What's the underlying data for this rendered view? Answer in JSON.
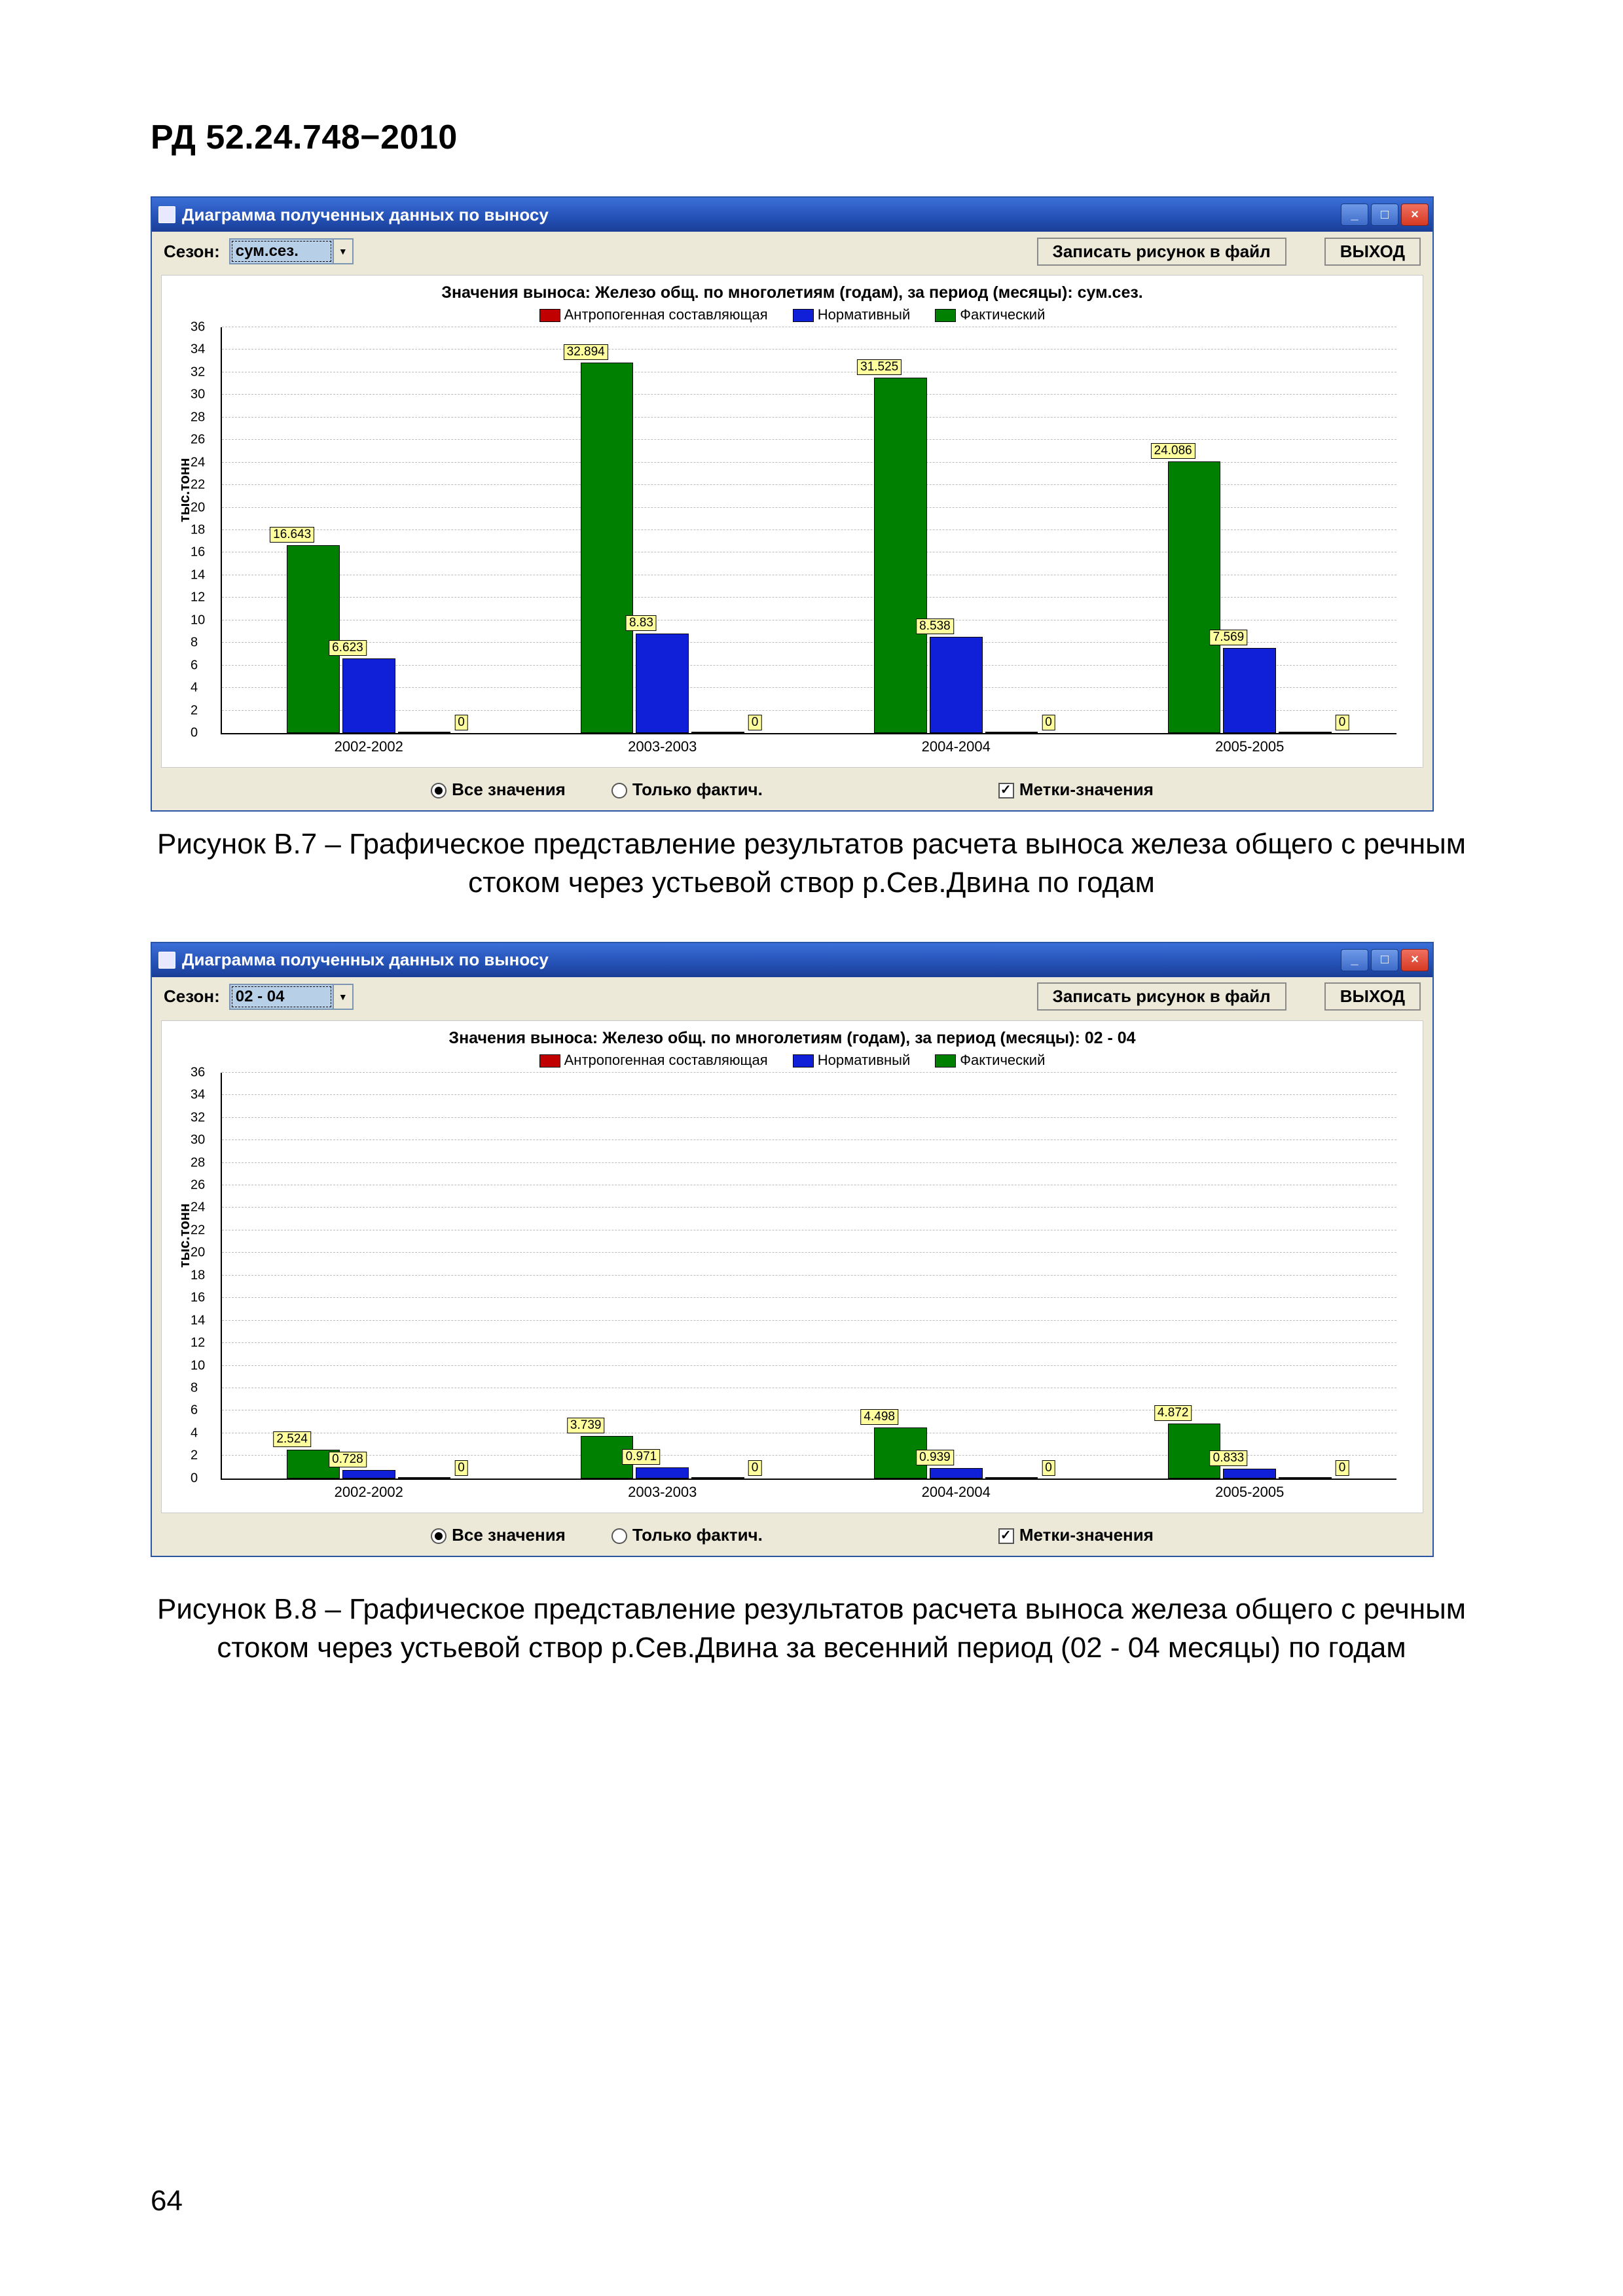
{
  "doc_header": "РД 52.24.748−2010",
  "page_number": "64",
  "common": {
    "window_title": "Диаграмма полученных данных по выносу",
    "toolbar": {
      "season_label": "Сезон:",
      "save_button": "Записать рисунок в файл",
      "exit_button": "ВЫХОД"
    },
    "legend": {
      "anthro": "Антропогенная составляющая",
      "norm": "Нормативный",
      "fact": "Фактический"
    },
    "footer": {
      "all_values": "Все значения",
      "only_fact": "Только фактич.",
      "labels_check": "Метки-значения"
    },
    "y_axis_label": "тыс.тонн",
    "colors": {
      "anthro": "#c00000",
      "norm": "#1020d8",
      "fact": "#008000",
      "grid": "#bcbcbc",
      "tag_bg": "#ffff9e",
      "titlebar_top": "#3b6fd8",
      "titlebar_bot": "#1a3e96",
      "panel_bg": "#ece9d8",
      "close_btn": "#d63a24"
    },
    "y_ticks": [
      0,
      2,
      4,
      6,
      8,
      10,
      12,
      14,
      16,
      18,
      20,
      22,
      24,
      26,
      28,
      30,
      32,
      34,
      36
    ],
    "y_max": 36,
    "categories": [
      "2002-2002",
      "2003-2003",
      "2004-2004",
      "2005-2005"
    ]
  },
  "chart1": {
    "combo_value": "сум.сез.",
    "title": "Значения выноса: Железо общ. по многолетиям (годам), за период (месяцы): сум.сез.",
    "series": {
      "fact": [
        16.643,
        32.894,
        31.525,
        24.086
      ],
      "norm": [
        6.623,
        8.83,
        8.538,
        7.569
      ],
      "anthro": [
        0,
        0,
        0,
        0
      ]
    },
    "labels": {
      "fact": [
        "16.643",
        "32.894",
        "31.525",
        "24.086"
      ],
      "norm": [
        "6.623",
        "8.83",
        "8.538",
        "7.569"
      ],
      "anthro": [
        "0",
        "0",
        "0",
        "0"
      ]
    }
  },
  "chart2": {
    "combo_value": "02 - 04",
    "title": "Значения выноса: Железо общ. по многолетиям (годам), за период (месяцы): 02 - 04",
    "series": {
      "fact": [
        2.524,
        3.739,
        4.498,
        4.872
      ],
      "norm": [
        0.728,
        0.971,
        0.939,
        0.833
      ],
      "anthro": [
        0,
        0,
        0,
        0
      ]
    },
    "labels": {
      "fact": [
        "2.524",
        "3.739",
        "4.498",
        "4.872"
      ],
      "norm": [
        "0.728",
        "0.971",
        "0.939",
        "0.833"
      ],
      "anthro": [
        "0",
        "0",
        "0",
        "0"
      ]
    }
  },
  "caption1": "Рисунок В.7 – Графическое представление результатов расчета выноса железа общего с речным стоком через устьевой створ р.Сев.Двина по годам",
  "caption2": "Рисунок В.8 – Графическое представление результатов расчета выноса железа общего с речным стоком через устьевой створ р.Сев.Двина за весенний период (02 - 04 месяцы) по годам"
}
